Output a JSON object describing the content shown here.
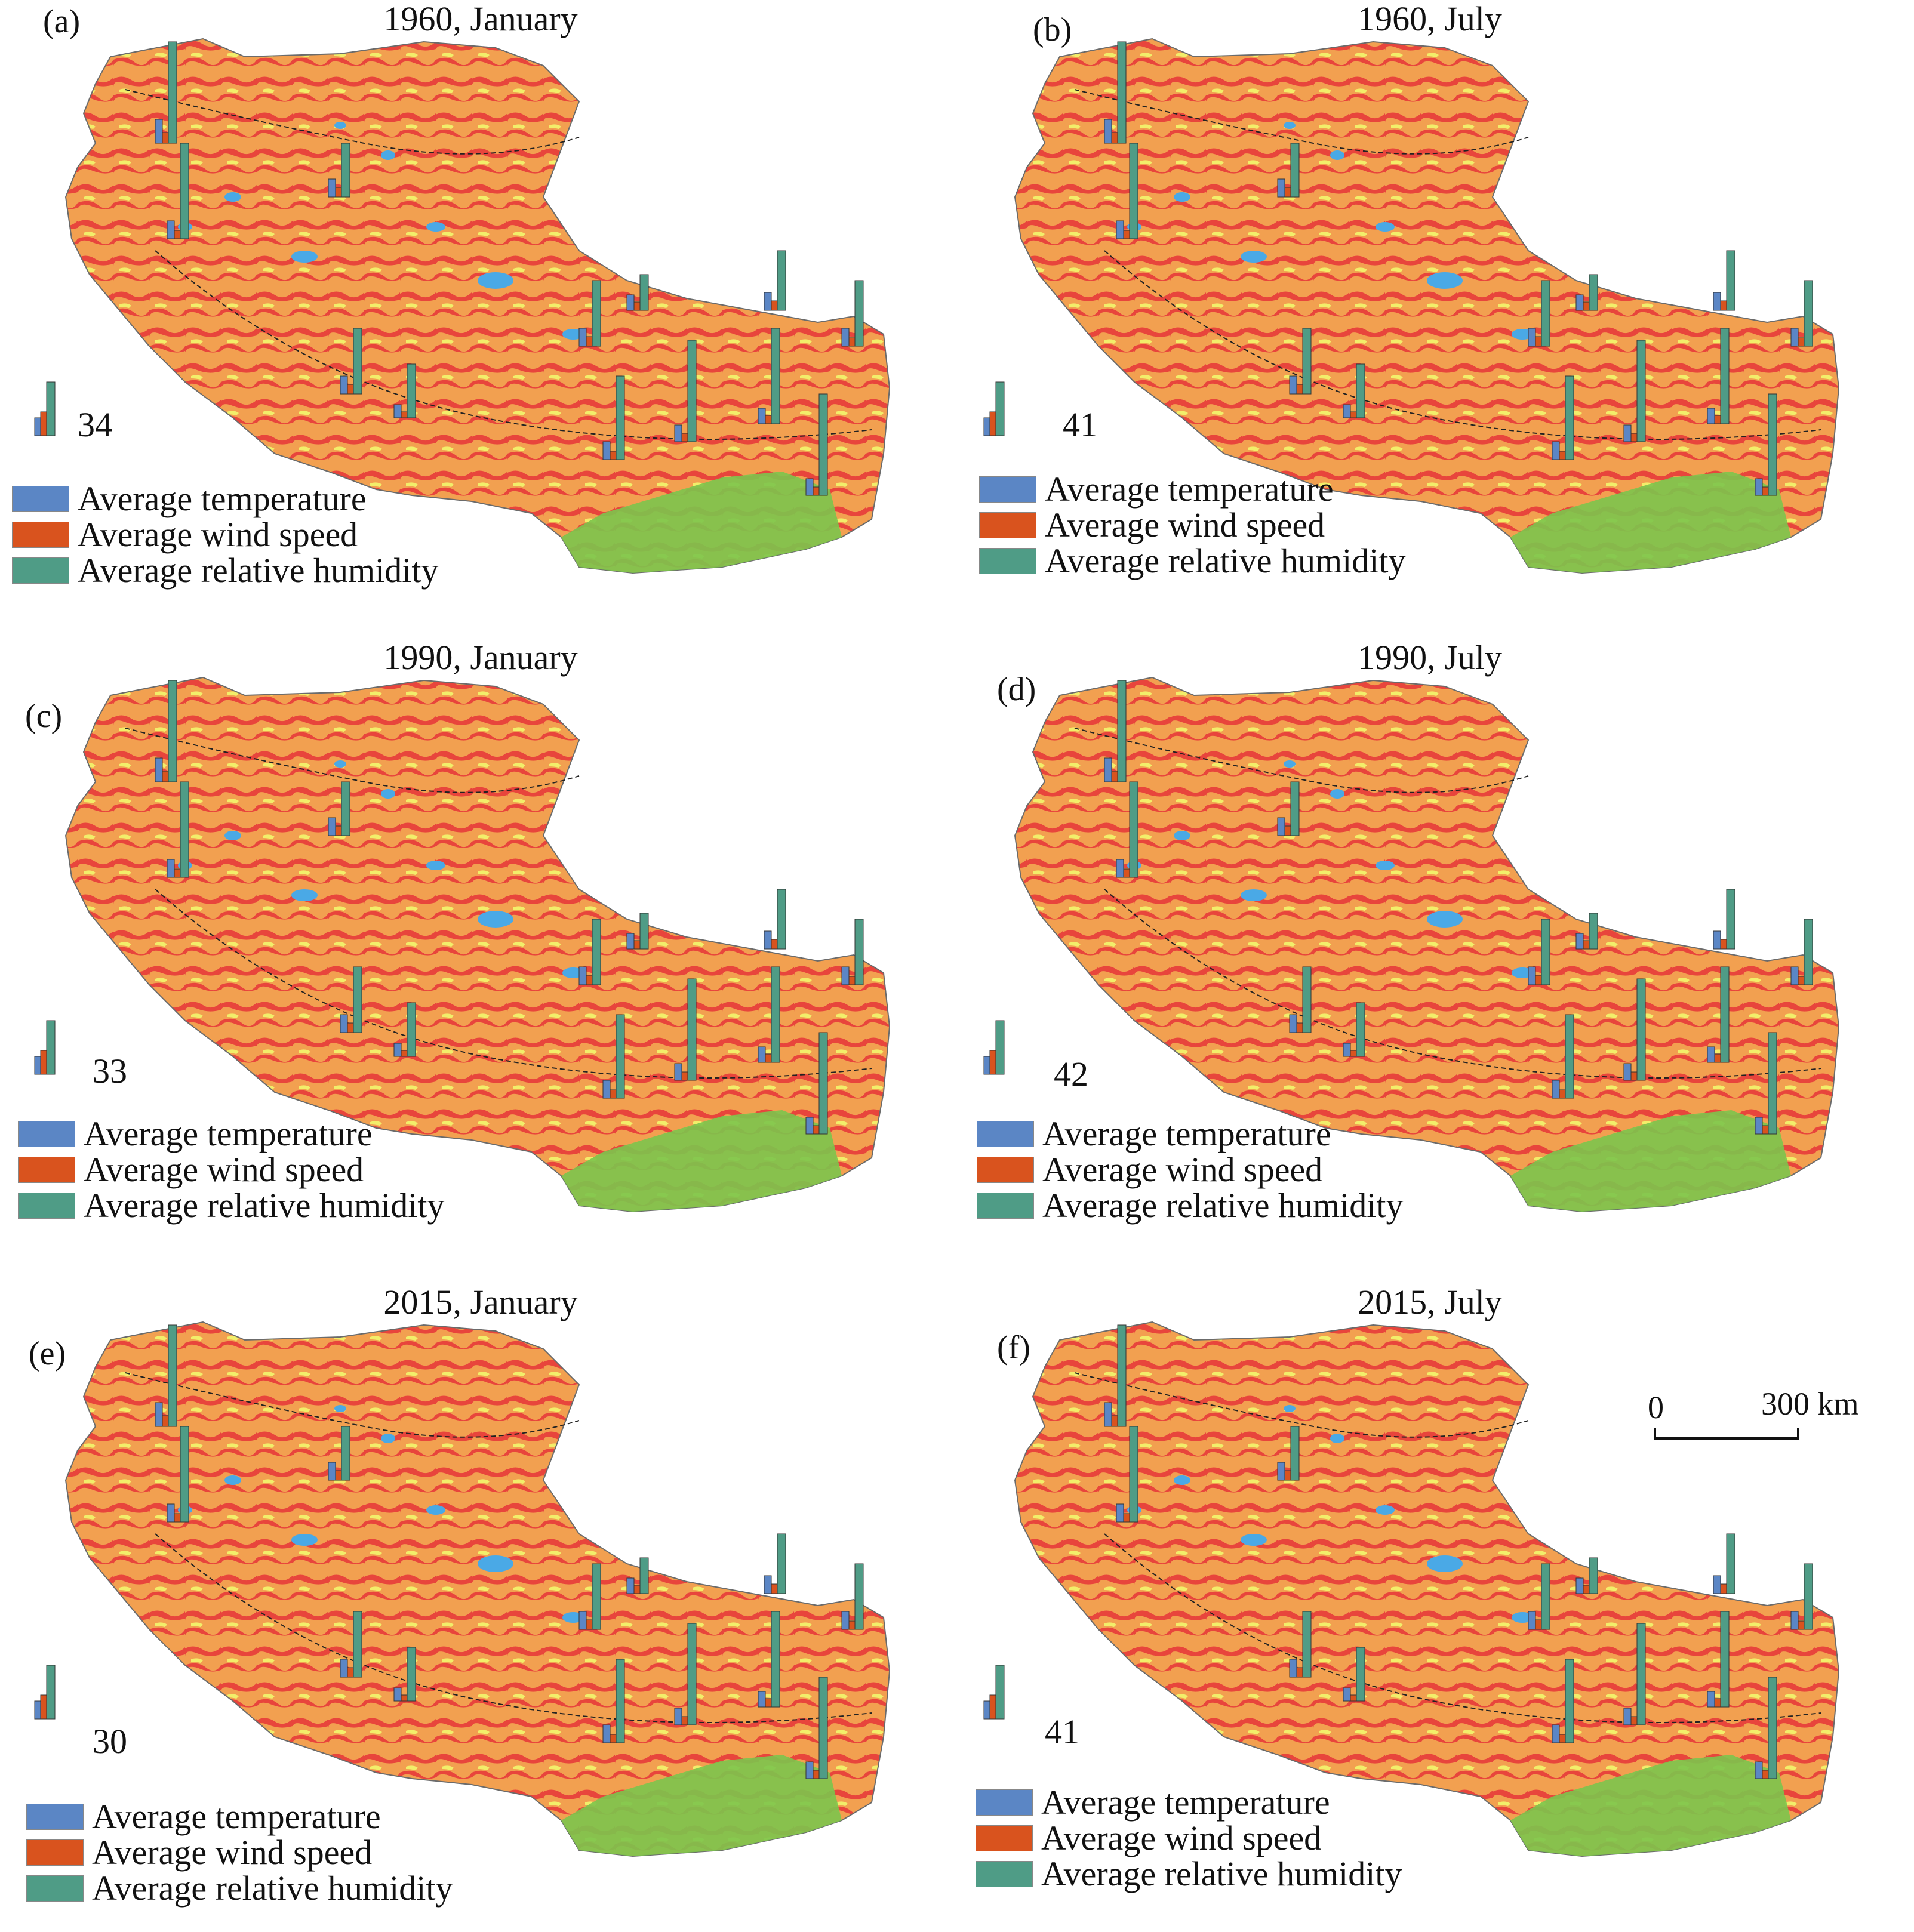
{
  "colors": {
    "temperature": "#5b86c5",
    "wind": "#d9531e",
    "humidity": "#4f9c86",
    "plateau_orange": "#f2a050",
    "plateau_red": "#e8453c",
    "plateau_yellow": "#f2ee6a",
    "plateau_green": "#7cc44c",
    "lake_blue": "#4aa9e6"
  },
  "legend": {
    "temperature": "Average temperature",
    "wind": "Average wind speed",
    "humidity": "Average relative humidity"
  },
  "panels": [
    {
      "letter": "(a)",
      "title": "1960, January",
      "station_count": "34"
    },
    {
      "letter": "(b)",
      "title": "1960, July",
      "station_count": "41"
    },
    {
      "letter": "(c)",
      "title": "1990, January",
      "station_count": "33"
    },
    {
      "letter": "(d)",
      "title": "1990, July",
      "station_count": "42"
    },
    {
      "letter": "(e)",
      "title": "2015, January",
      "station_count": "30"
    },
    {
      "letter": "(f)",
      "title": "2015, July",
      "station_count": "41"
    }
  ],
  "scalebar": {
    "zero": "0",
    "distance": "300 km"
  }
}
